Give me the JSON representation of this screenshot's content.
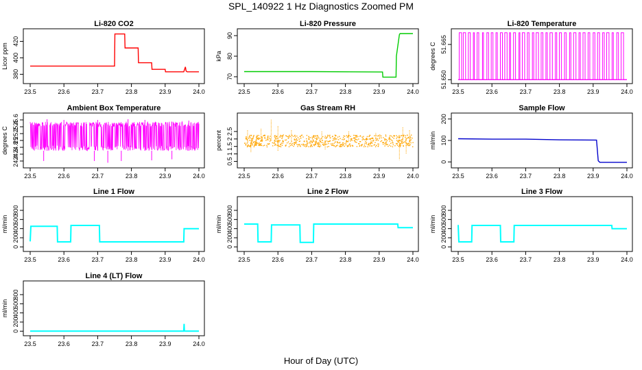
{
  "figure": {
    "title": "SPL_140922  1 Hz Diagnostics Zoomed PM",
    "xlabel": "Hour of Day (UTC)"
  },
  "chart_data": [
    {
      "type": "line",
      "title": "Li-820 CO2",
      "ylabel": "Licor ppm",
      "color": "#ff0000",
      "xlim": [
        23.5,
        24.0
      ],
      "ylim": [
        372,
        432
      ],
      "xticks": [
        "23.5",
        "23.6",
        "23.7",
        "23.8",
        "23.9",
        "24.0"
      ],
      "yticks": [
        380,
        400,
        420
      ],
      "x": [
        23.5,
        23.6,
        23.7,
        23.75,
        23.751,
        23.78,
        23.781,
        23.82,
        23.821,
        23.86,
        23.861,
        23.9,
        23.901,
        23.955,
        23.96,
        23.962,
        23.965,
        24.0
      ],
      "y": [
        390,
        390,
        390,
        390,
        429,
        429,
        412,
        412,
        394,
        394,
        386,
        386,
        383,
        383,
        389,
        384,
        383,
        383
      ]
    },
    {
      "type": "line",
      "title": "Li-820 Pressure",
      "ylabel": "kPa",
      "color": "#00cc00",
      "xlim": [
        23.5,
        24.0
      ],
      "ylim": [
        68,
        92
      ],
      "xticks": [
        "23.5",
        "23.6",
        "23.7",
        "23.8",
        "23.9",
        "24.0"
      ],
      "yticks": [
        70,
        80,
        90
      ],
      "x": [
        23.5,
        23.7,
        23.91,
        23.911,
        23.95,
        23.951,
        23.96,
        23.962,
        24.0
      ],
      "y": [
        72.5,
        72.5,
        72.3,
        69.8,
        69.8,
        80,
        90.5,
        91,
        91
      ]
    },
    {
      "type": "line",
      "title": "Li-820 Temperature",
      "ylabel": "degrees C",
      "color": "#ff00ff",
      "xlim": [
        23.5,
        24.0
      ],
      "ylim": [
        51.6495,
        51.6705
      ],
      "xticks": [
        "23.5",
        "23.6",
        "23.7",
        "23.8",
        "23.9",
        "24.0"
      ],
      "yticks": [
        51.65,
        51.665
      ],
      "ytick_labels": [
        "51.650",
        "51.665"
      ],
      "low": 51.65,
      "high": 51.67,
      "toggle_x": [
        23.503,
        23.51,
        23.515,
        23.522,
        23.53,
        23.536,
        23.545,
        23.548,
        23.556,
        23.561,
        23.572,
        23.575,
        23.585,
        23.59,
        23.598,
        23.603,
        23.612,
        23.616,
        23.625,
        23.631,
        23.638,
        23.645,
        23.652,
        23.655,
        23.664,
        23.67,
        23.68,
        23.683,
        23.69,
        23.697,
        23.705,
        23.71,
        23.72,
        23.724,
        23.731,
        23.738,
        23.746,
        23.751,
        23.76,
        23.764,
        23.772,
        23.779,
        23.788,
        23.792,
        23.8,
        23.806,
        23.815,
        23.82,
        23.83,
        23.834,
        23.842,
        23.849,
        23.858,
        23.862,
        23.87,
        23.876,
        23.885,
        23.89,
        23.9,
        23.905,
        23.913,
        23.919,
        23.928,
        23.933,
        23.94,
        23.947,
        23.956,
        23.96,
        23.97,
        23.975,
        23.983,
        23.99
      ]
    },
    {
      "type": "line",
      "title": "Ambient Box Temperature",
      "ylabel": "degrees C",
      "color": "#ff00ff",
      "xlim": [
        23.5,
        24.0
      ],
      "ylim": [
        24.28,
        25.72
      ],
      "xticks": [
        "23.5",
        "23.6",
        "23.7",
        "23.8",
        "23.9",
        "24.0"
      ],
      "yticks": [
        24.4,
        24.6,
        24.8,
        25.0,
        25.2,
        25.4,
        25.6
      ],
      "band": [
        24.7,
        25.55
      ],
      "spikes_low": [
        [
          23.54,
          24.4
        ],
        [
          23.69,
          24.4
        ],
        [
          23.73,
          24.35
        ],
        [
          23.77,
          24.4
        ],
        [
          23.86,
          24.42
        ],
        [
          23.92,
          24.45
        ]
      ],
      "spikes_high": [
        [
          23.55,
          25.62
        ],
        [
          23.6,
          25.6
        ],
        [
          23.7,
          25.6
        ],
        [
          23.79,
          25.62
        ],
        [
          23.84,
          25.6
        ],
        [
          23.97,
          25.58
        ]
      ]
    },
    {
      "type": "scatter",
      "title": "Gas Stream RH",
      "ylabel": "percent",
      "color": "#ffa500",
      "xlim": [
        23.5,
        24.0
      ],
      "ylim": [
        0.25,
        3.55
      ],
      "xticks": [
        "23.5",
        "23.6",
        "23.7",
        "23.8",
        "23.9",
        "24.0"
      ],
      "yticks": [
        0.5,
        1.0,
        1.5,
        2.0,
        2.5
      ],
      "band": [
        1.5,
        2.3
      ],
      "spikes": [
        [
          23.51,
          2.6
        ],
        [
          23.55,
          2.7
        ],
        [
          23.58,
          3.3
        ],
        [
          23.6,
          2.9
        ],
        [
          23.64,
          2.6
        ],
        [
          23.73,
          2.5
        ],
        [
          23.81,
          2.5
        ],
        [
          23.89,
          2.4
        ],
        [
          23.97,
          2.8
        ],
        [
          23.99,
          2.6
        ],
        [
          23.52,
          1.1
        ],
        [
          23.6,
          1.2
        ],
        [
          23.74,
          1.3
        ],
        [
          23.96,
          0.6
        ],
        [
          23.98,
          1.0
        ]
      ]
    },
    {
      "type": "line",
      "title": "Sample Flow",
      "ylabel": "ml/min",
      "color": "#0000cc",
      "xlim": [
        23.5,
        24.0
      ],
      "ylim": [
        -15,
        215
      ],
      "xticks": [
        "23.5",
        "23.6",
        "23.7",
        "23.8",
        "23.9",
        "24.0"
      ],
      "yticks": [
        0,
        100,
        200
      ],
      "x": [
        23.5,
        23.6,
        23.7,
        23.8,
        23.91,
        23.915,
        23.92,
        24.0
      ],
      "y": [
        108,
        106,
        106,
        103,
        102,
        5,
        -2,
        -2
      ]
    },
    {
      "type": "line",
      "title": "Line 1 Flow",
      "ylabel": "ml/min",
      "color": "#00ffff",
      "xlim": [
        23.5,
        24.0
      ],
      "ylim": [
        -40,
        1040
      ],
      "xticks": [
        "23.5",
        "23.6",
        "23.7",
        "23.8",
        "23.9",
        "24.0"
      ],
      "yticks": [
        0,
        200,
        400,
        600,
        800
      ],
      "x": [
        23.5,
        23.502,
        23.58,
        23.581,
        23.62,
        23.621,
        23.705,
        23.706,
        23.955,
        23.956,
        24.0
      ],
      "y": [
        120,
        450,
        450,
        110,
        110,
        470,
        470,
        110,
        110,
        400,
        400
      ]
    },
    {
      "type": "line",
      "title": "Line 2 Flow",
      "ylabel": "ml/min",
      "color": "#00ffff",
      "xlim": [
        23.5,
        24.0
      ],
      "ylim": [
        -40,
        1040
      ],
      "xticks": [
        "23.5",
        "23.6",
        "23.7",
        "23.8",
        "23.9",
        "24.0"
      ],
      "yticks": [
        0,
        200,
        400,
        600,
        800
      ],
      "x": [
        23.5,
        23.54,
        23.541,
        23.58,
        23.581,
        23.665,
        23.666,
        23.705,
        23.706,
        23.955,
        23.956,
        24.0
      ],
      "y": [
        500,
        500,
        110,
        110,
        480,
        480,
        100,
        100,
        500,
        500,
        420,
        420
      ]
    },
    {
      "type": "line",
      "title": "Line 3 Flow",
      "ylabel": "ml/min",
      "color": "#00ffff",
      "xlim": [
        23.5,
        24.0
      ],
      "ylim": [
        -40,
        1040
      ],
      "xticks": [
        "23.5",
        "23.6",
        "23.7",
        "23.8",
        "23.9",
        "24.0"
      ],
      "yticks": [
        0,
        200,
        400,
        600,
        800
      ],
      "x": [
        23.5,
        23.502,
        23.505,
        23.54,
        23.541,
        23.625,
        23.626,
        23.665,
        23.666,
        23.955,
        23.956,
        24.0
      ],
      "y": [
        480,
        110,
        110,
        110,
        470,
        470,
        110,
        110,
        470,
        470,
        400,
        400
      ]
    },
    {
      "type": "line",
      "title": "Line 4 (LT) Flow",
      "ylabel": "ml/min",
      "color": "#00ffff",
      "xlim": [
        23.5,
        24.0
      ],
      "ylim": [
        -40,
        1040
      ],
      "xticks": [
        "23.5",
        "23.6",
        "23.7",
        "23.8",
        "23.9",
        "24.0"
      ],
      "yticks": [
        0,
        200,
        400,
        600,
        800
      ],
      "x": [
        23.5,
        23.955,
        23.956,
        23.957,
        23.96,
        24.0
      ],
      "y": [
        0,
        0,
        160,
        5,
        0,
        0
      ]
    }
  ]
}
